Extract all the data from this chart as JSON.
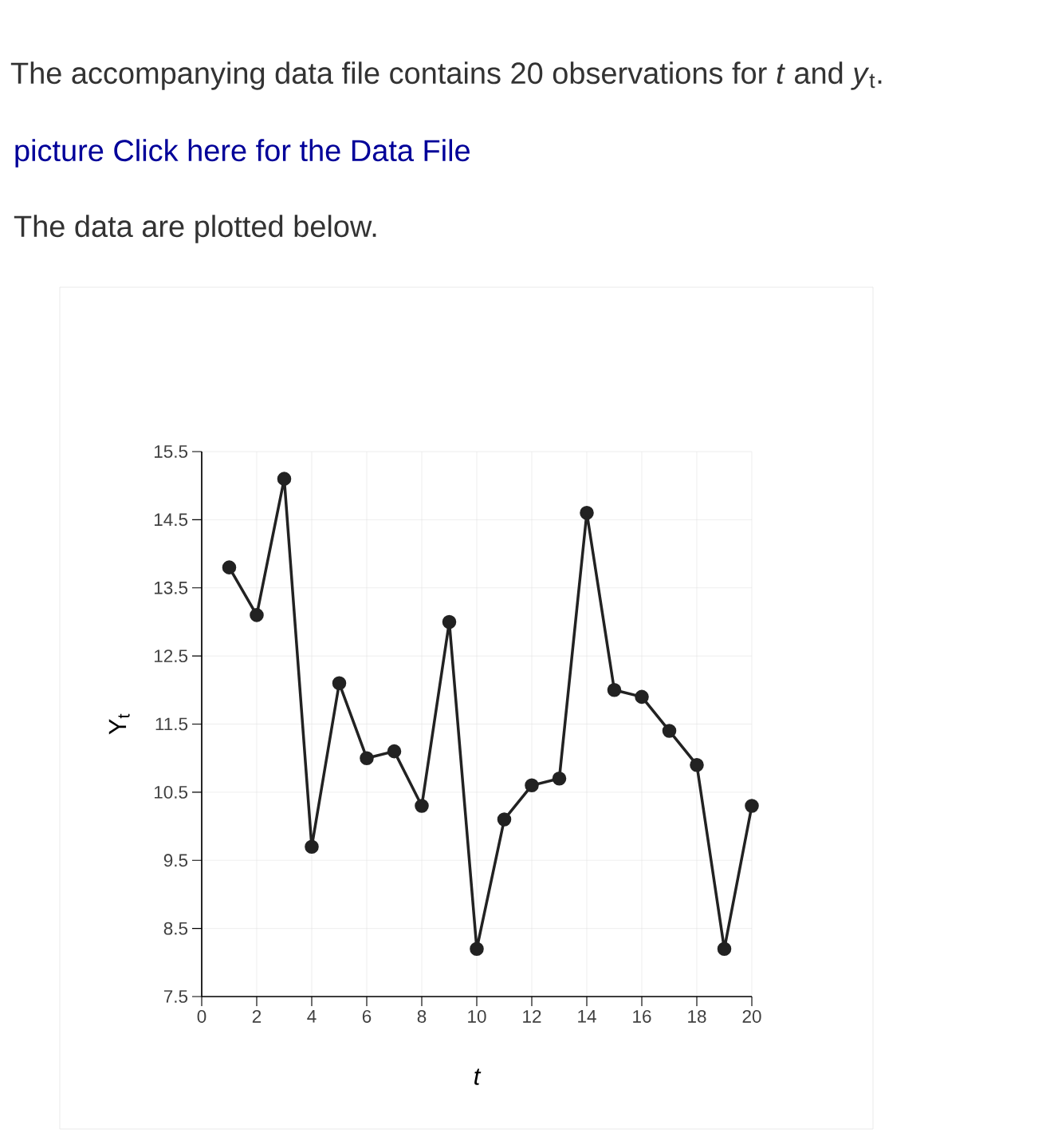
{
  "chart_data": {
    "type": "line",
    "title": "The accompanying data file contains 20 observations for *t* and *y*$_{t}$.",
    "annotations": [
      "picture Click here for the Data File",
      "The data are plotted below."
    ],
    "xlabel": "t",
    "ylabel": "Y$_{t}$",
    "x": [
      1,
      2,
      3,
      4,
      5,
      6,
      7,
      8,
      9,
      10,
      11,
      12,
      13,
      14,
      15,
      16,
      17,
      18,
      19,
      20
    ],
    "series": [
      {
        "color": "#222222",
        "values": [
          13.8,
          13.1,
          15.1,
          9.7,
          12.1,
          11.0,
          11.1,
          10.3,
          13.0,
          8.2,
          10.1,
          10.6,
          10.7,
          14.6,
          12.0,
          11.9,
          11.4,
          10.9,
          8.2,
          10.3
        ]
      }
    ],
    "xlim": [
      0,
      20
    ],
    "ylim": [
      7.5,
      15.5
    ],
    "xticks": [
      0,
      2,
      4,
      6,
      8,
      10,
      12,
      14,
      16,
      18,
      20
    ],
    "yticks": [
      7.5,
      8.5,
      9.5,
      10.5,
      11.5,
      12.5,
      13.5,
      14.5,
      15.5
    ],
    "grid": true,
    "marker": "circle",
    "line_style": "solid"
  }
}
